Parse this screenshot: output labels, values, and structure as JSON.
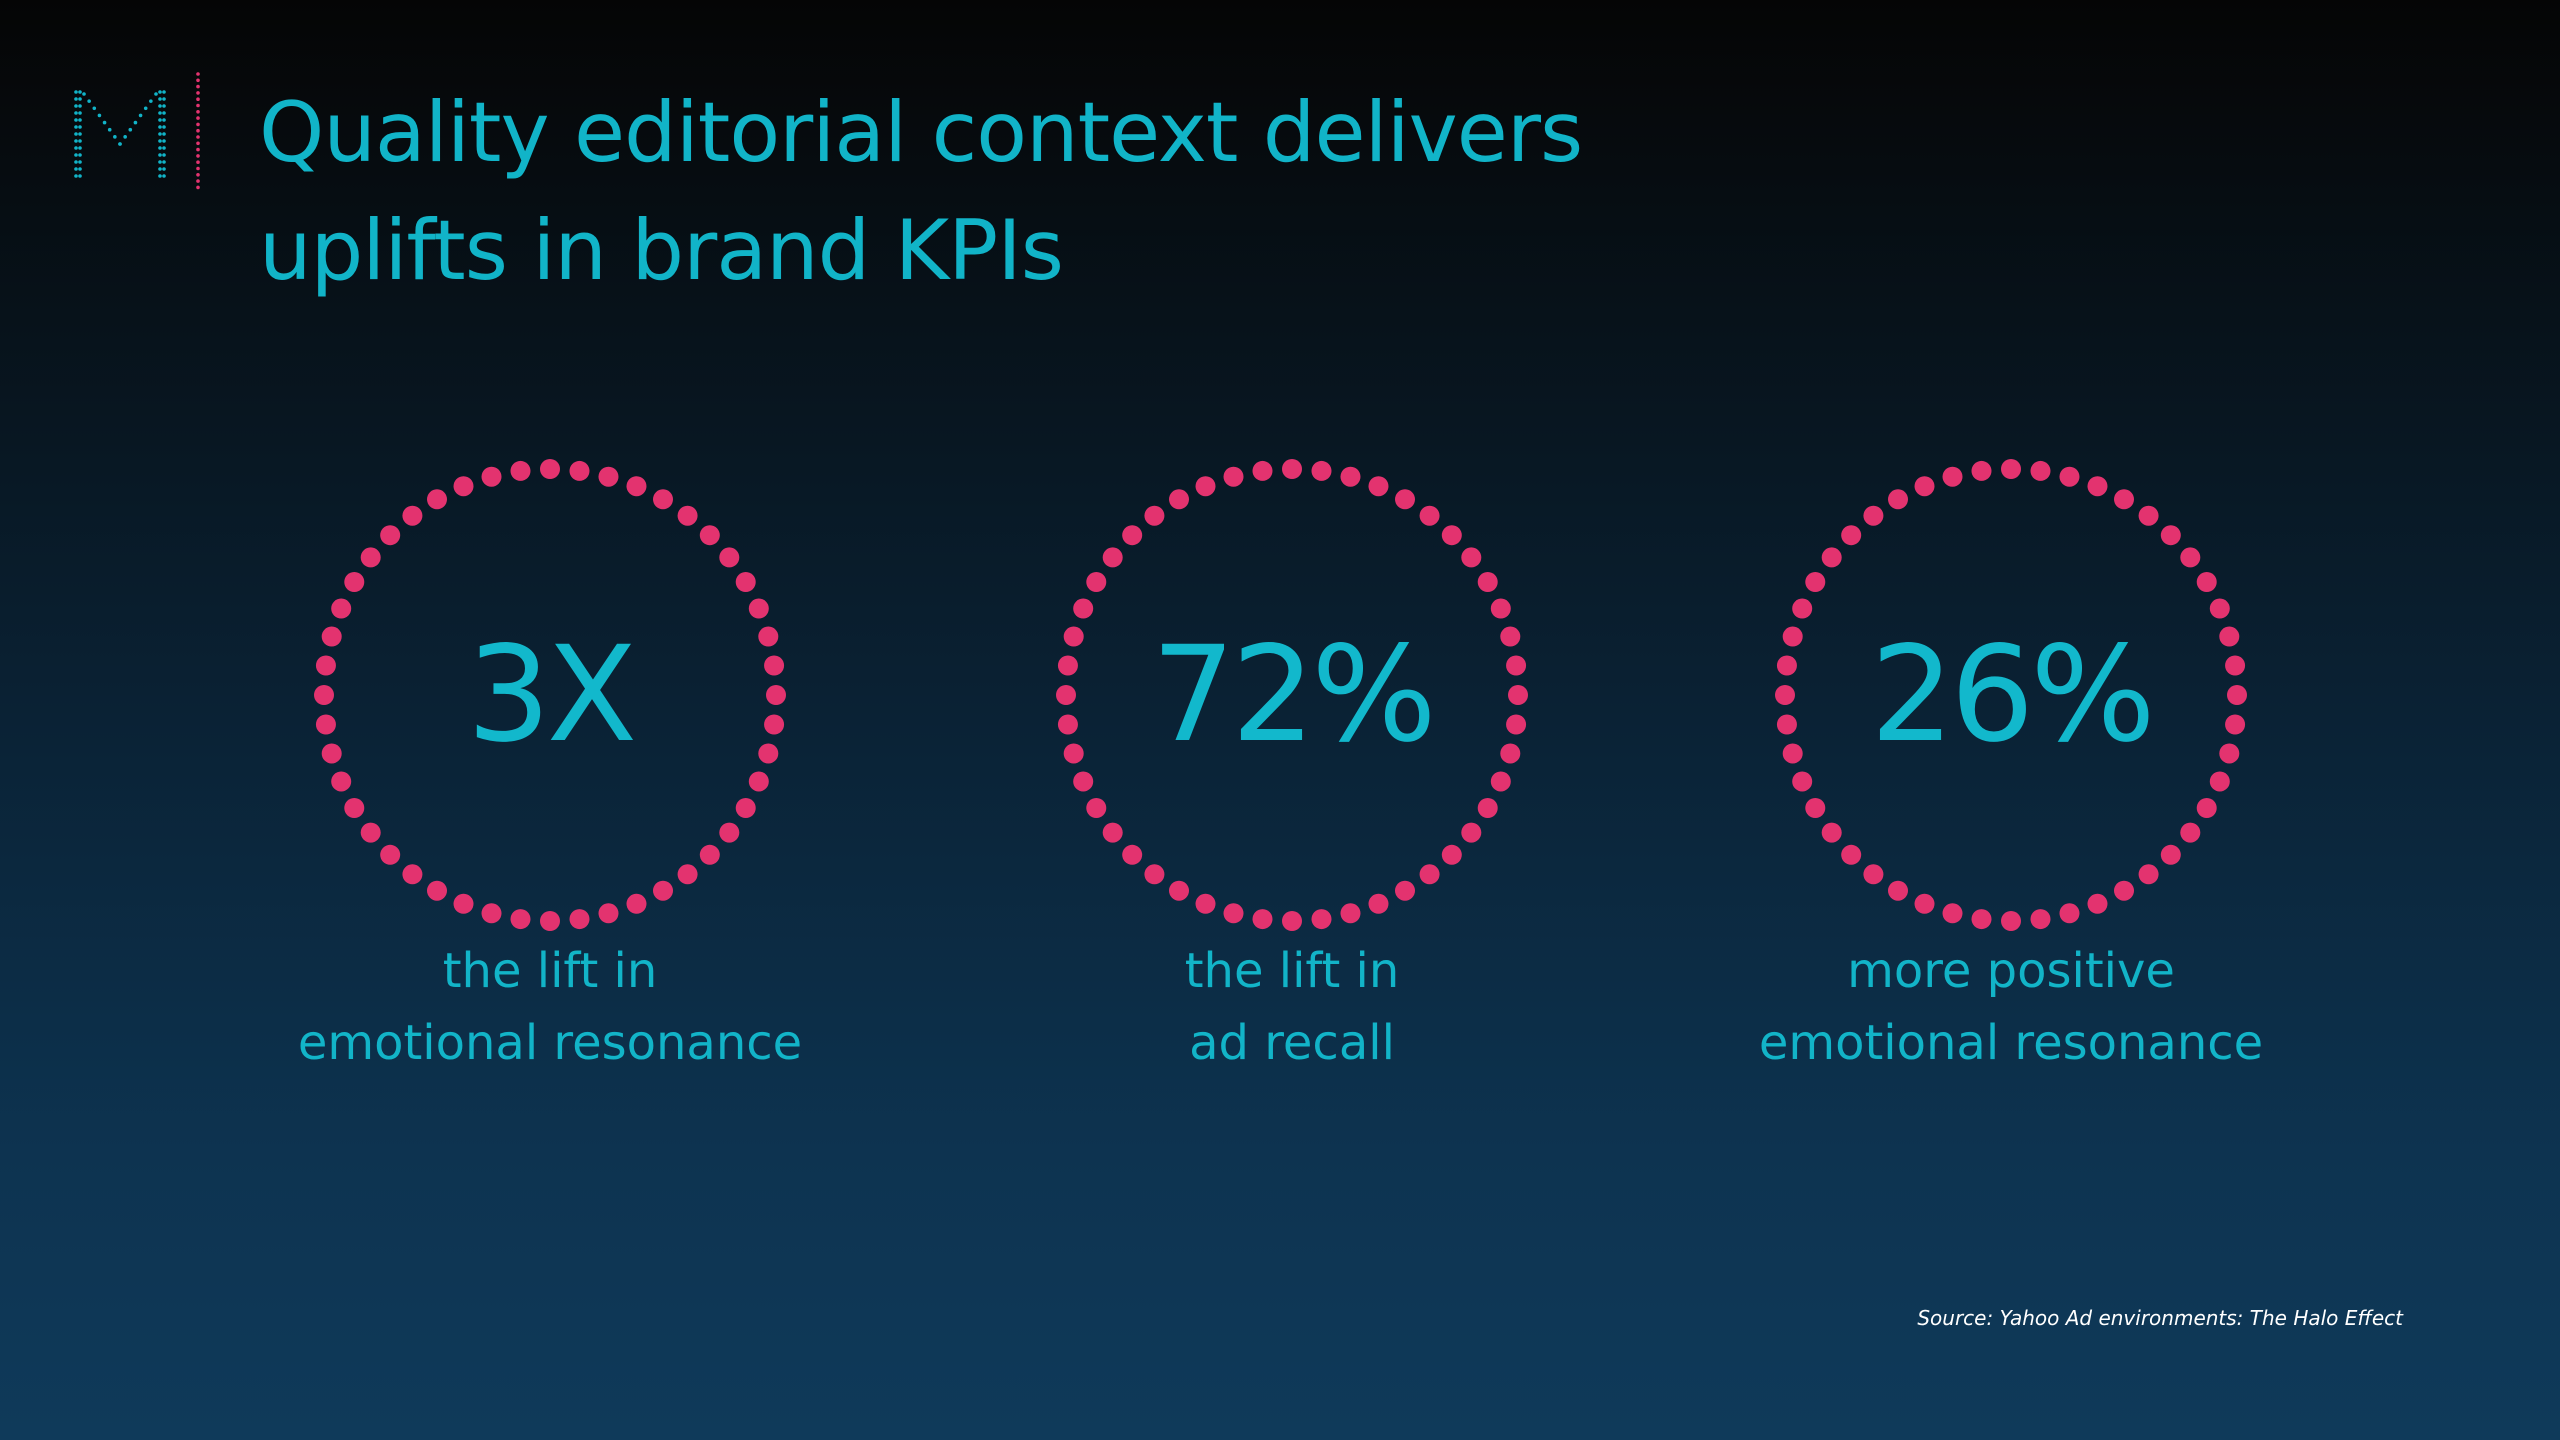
{
  "title": {
    "line1": "Quality editorial context delivers",
    "line2": "uplifts in brand KPIs"
  },
  "colors": {
    "accent": "#12b8cc",
    "ring": "#e3336f",
    "background_top": "#050505",
    "background_bottom": "#0f3a5a"
  },
  "logo": {
    "icon": "m-dotted-logo-icon"
  },
  "stats": [
    {
      "value": "3X",
      "caption_line1": "the lift in",
      "caption_line2": "emotional resonance"
    },
    {
      "value": "72%",
      "caption_line1": "the lift in",
      "caption_line2": "ad recall"
    },
    {
      "value": "26%",
      "caption_line1": "more positive",
      "caption_line2": "emotional resonance"
    }
  ],
  "source": "Source: Yahoo Ad environments: The Halo Effect"
}
